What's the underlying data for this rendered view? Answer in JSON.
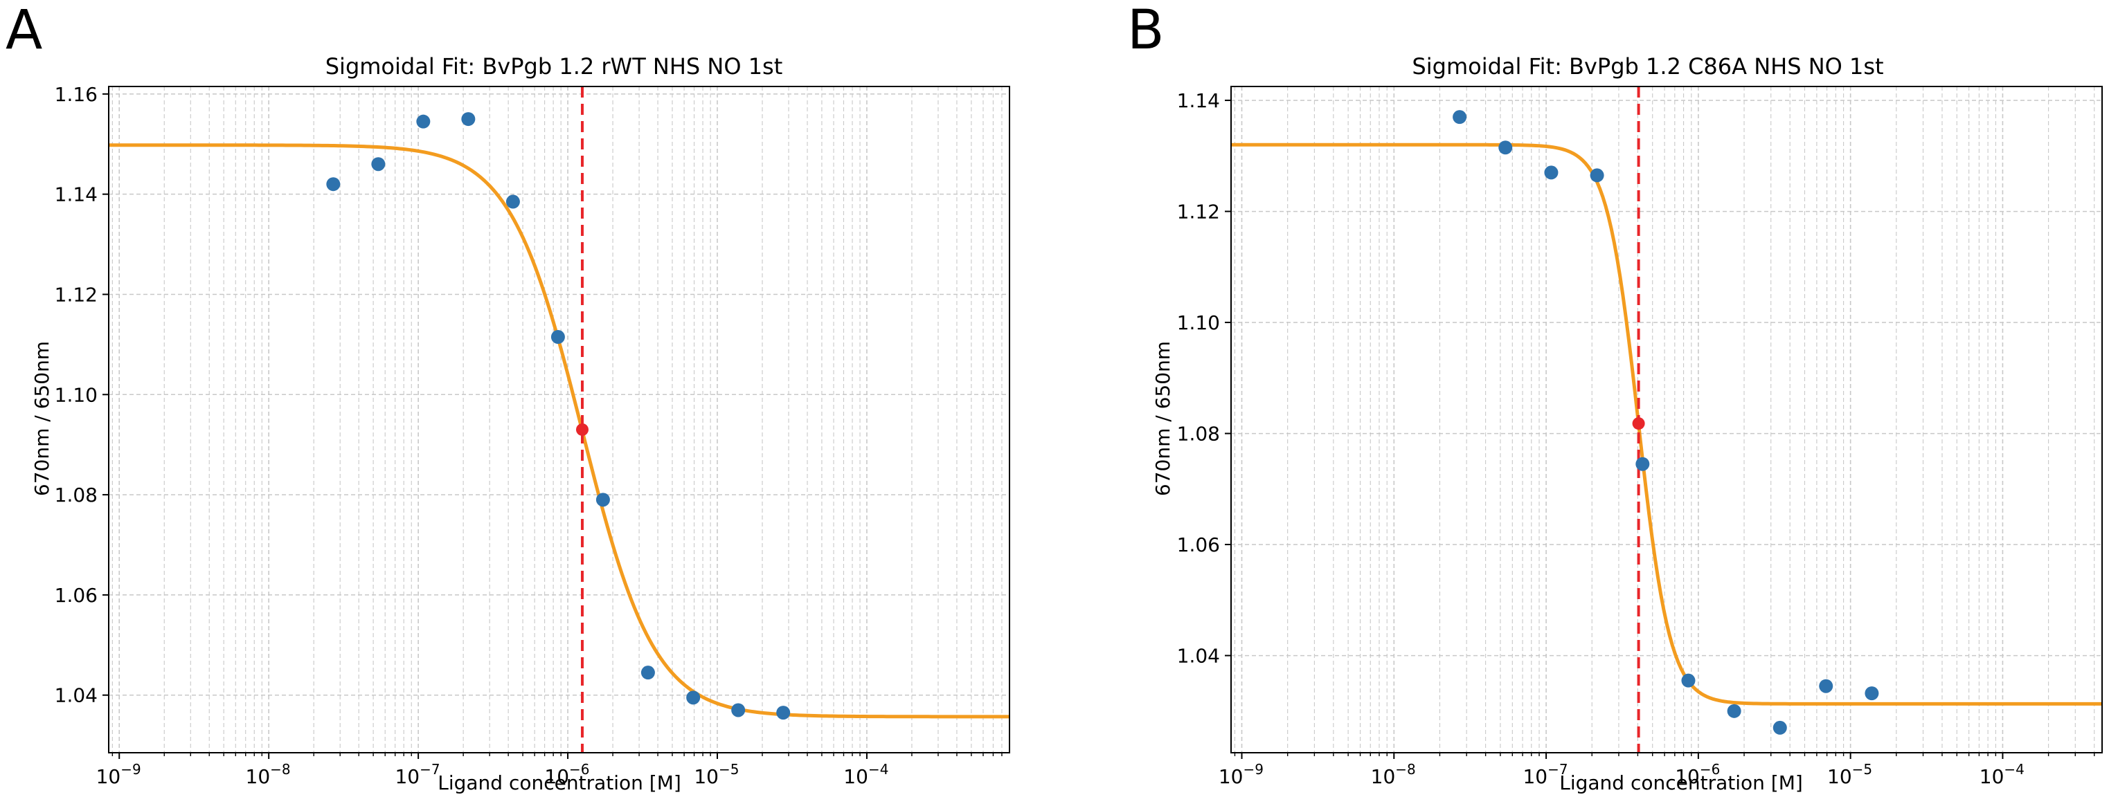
{
  "figure": {
    "panels": [
      "A",
      "B"
    ]
  },
  "colors": {
    "points": "#2e72ad",
    "fit": "#f39c1f",
    "ec50_line": "#e8262a",
    "ec50_point": "#e8262a",
    "grid": "#c8c8c8",
    "axis": "#000000"
  },
  "chart_data": [
    {
      "panel": "A",
      "type": "scatter",
      "title": "Sigmoidal Fit: BvPgb 1.2 rWT NHS NO 1st",
      "xlabel": "Ligand concentration [M]",
      "ylabel": "670nm / 650nm",
      "xscale": "log",
      "xlim": [
        8.5e-10,
        0.0009
      ],
      "ylim": [
        1.0285,
        1.1615
      ],
      "grid": true,
      "x_tick_labels": [
        {
          "v": 1e-09,
          "base": "10",
          "exp": "−9"
        },
        {
          "v": 1e-08,
          "base": "10",
          "exp": "−8"
        },
        {
          "v": 1e-07,
          "base": "10",
          "exp": "−7"
        },
        {
          "v": 1e-06,
          "base": "10",
          "exp": "−6"
        },
        {
          "v": 1e-05,
          "base": "10",
          "exp": "−5"
        },
        {
          "v": 0.0001,
          "base": "10",
          "exp": "−4"
        }
      ],
      "y_tick_labels": [
        "1.04",
        "1.06",
        "1.08",
        "1.10",
        "1.12",
        "1.14",
        "1.16"
      ],
      "points": [
        {
          "x": 2.7e-08,
          "y": 1.142
        },
        {
          "x": 5.4e-08,
          "y": 1.146
        },
        {
          "x": 1.08e-07,
          "y": 1.1545
        },
        {
          "x": 2.16e-07,
          "y": 1.155
        },
        {
          "x": 4.3e-07,
          "y": 1.1385
        },
        {
          "x": 8.6e-07,
          "y": 1.1115
        },
        {
          "x": 1.72e-06,
          "y": 1.079
        },
        {
          "x": 3.44e-06,
          "y": 1.0445
        },
        {
          "x": 6.9e-06,
          "y": 1.0395
        },
        {
          "x": 1.38e-05,
          "y": 1.037
        },
        {
          "x": 2.76e-05,
          "y": 1.0365
        }
      ],
      "fit": {
        "top": 1.1498,
        "bottom": 1.0357,
        "ec50": 1.25e-06,
        "hill": 1.8
      },
      "ec50_point": {
        "x": 1.25e-06,
        "y": 1.093
      }
    },
    {
      "panel": "B",
      "type": "scatter",
      "title": "Sigmoidal Fit: BvPgb 1.2 C86A NHS NO 1st",
      "xlabel": "Ligand concentration [M]",
      "ylabel": "670nm / 650nm",
      "xscale": "log",
      "xlim": [
        8.5e-10,
        0.00045
      ],
      "ylim": [
        1.0225,
        1.1425
      ],
      "grid": true,
      "x_tick_labels": [
        {
          "v": 1e-09,
          "base": "10",
          "exp": "−9"
        },
        {
          "v": 1e-08,
          "base": "10",
          "exp": "−8"
        },
        {
          "v": 1e-07,
          "base": "10",
          "exp": "−7"
        },
        {
          "v": 1e-06,
          "base": "10",
          "exp": "−6"
        },
        {
          "v": 1e-05,
          "base": "10",
          "exp": "−5"
        },
        {
          "v": 0.0001,
          "base": "10",
          "exp": "−4"
        }
      ],
      "y_tick_labels": [
        "1.04",
        "1.06",
        "1.08",
        "1.10",
        "1.12",
        "1.14"
      ],
      "points": [
        {
          "x": 2.7e-08,
          "y": 1.137
        },
        {
          "x": 5.4e-08,
          "y": 1.1315
        },
        {
          "x": 1.08e-07,
          "y": 1.127
        },
        {
          "x": 2.16e-07,
          "y": 1.1265
        },
        {
          "x": 4.3e-07,
          "y": 1.0745
        },
        {
          "x": 8.6e-07,
          "y": 1.0355
        },
        {
          "x": 1.72e-06,
          "y": 1.03
        },
        {
          "x": 3.44e-06,
          "y": 1.027
        },
        {
          "x": 6.9e-06,
          "y": 1.0345
        },
        {
          "x": 1.38e-05,
          "y": 1.0332
        }
      ],
      "fit": {
        "top": 1.132,
        "bottom": 1.0313,
        "ec50": 4.05e-07,
        "hill": 4.2
      },
      "ec50_point": {
        "x": 4.05e-07,
        "y": 1.0818
      }
    }
  ]
}
